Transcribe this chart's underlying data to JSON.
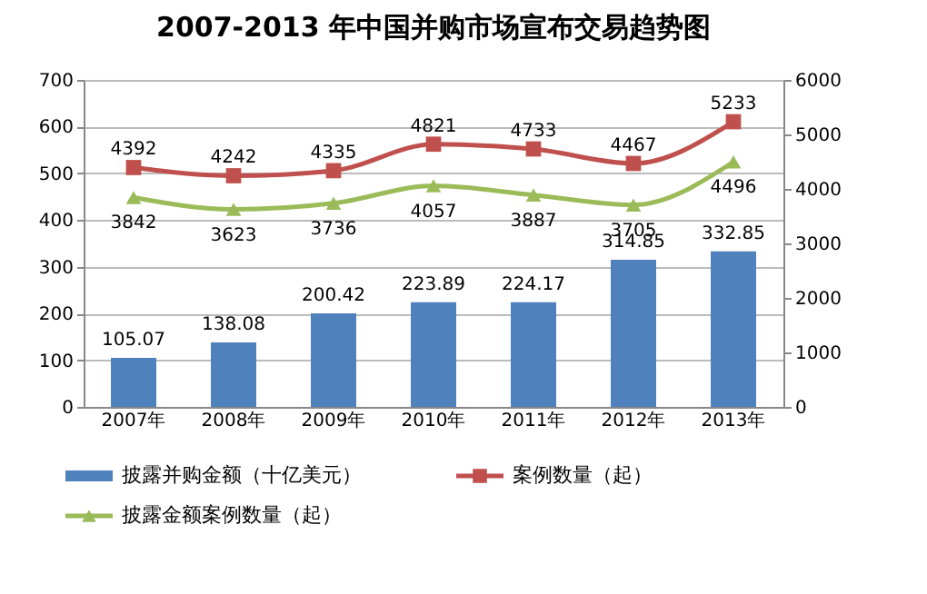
{
  "chart_data": {
    "type": "bar",
    "title": "2007-2013 年中国并购市场宣布交易趋势图",
    "categories": [
      "2007年",
      "2008年",
      "2009年",
      "2010年",
      "2011年",
      "2012年",
      "2013年"
    ],
    "series": [
      {
        "name": "披露并购金额（十亿美元）",
        "color": "#4f81bd",
        "values": [
          105.07,
          138.08,
          200.42,
          223.89,
          224.17,
          314.85,
          332.85
        ]
      },
      {
        "name": "案例数量（起）",
        "type": "line",
        "axis": "y2",
        "color": "#c0504d",
        "marker": "square",
        "values": [
          4392,
          4242,
          4335,
          4821,
          4733,
          4467,
          5233
        ]
      },
      {
        "name": "披露金额案例数量（起）",
        "type": "line",
        "axis": "y2",
        "color": "#9bbb59",
        "marker": "triangle",
        "values": [
          3842,
          3623,
          3736,
          4057,
          3887,
          3705,
          4496
        ]
      }
    ],
    "ylim": [
      0,
      700
    ],
    "yticks": [
      0,
      100,
      200,
      300,
      400,
      500,
      600,
      700
    ],
    "y2lim": [
      0,
      6000
    ],
    "y2ticks": [
      0,
      1000,
      2000,
      3000,
      4000,
      5000,
      6000
    ],
    "grid": "y",
    "legend": "bottom",
    "data_labels": true
  }
}
